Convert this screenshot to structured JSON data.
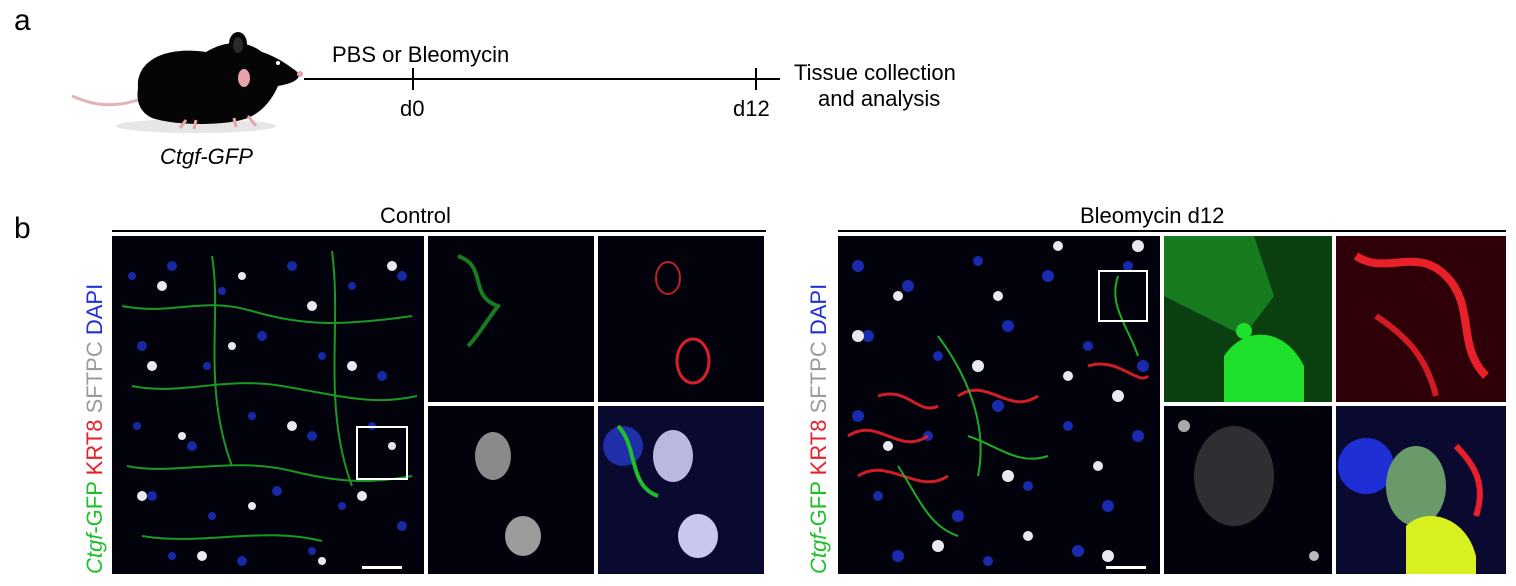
{
  "panel_a": {
    "label": "a",
    "mouse_label": "Ctgf-GFP",
    "treatment": "PBS or Bleomycin",
    "day0": "d0",
    "day12": "d12",
    "endpoint_line1": "Tissue collection",
    "endpoint_line2": "and analysis"
  },
  "panel_b": {
    "label": "b",
    "control_title": "Control",
    "bleo_title": "Bleomycin d12",
    "stain_ctgf_italic": "Ctgf",
    "stain_ctgf_rest": "-GFP",
    "stain_krt8": "KRT8",
    "stain_sftpc": "SFTPC",
    "stain_dapi": "DAPI"
  },
  "colors": {
    "gfp": "#1fbf2a",
    "krt8": "#e8202a",
    "sftpc": "#9a9a9a",
    "dapi": "#1f2fd6"
  },
  "icons": {
    "mouse": "black-mouse-illustration"
  }
}
